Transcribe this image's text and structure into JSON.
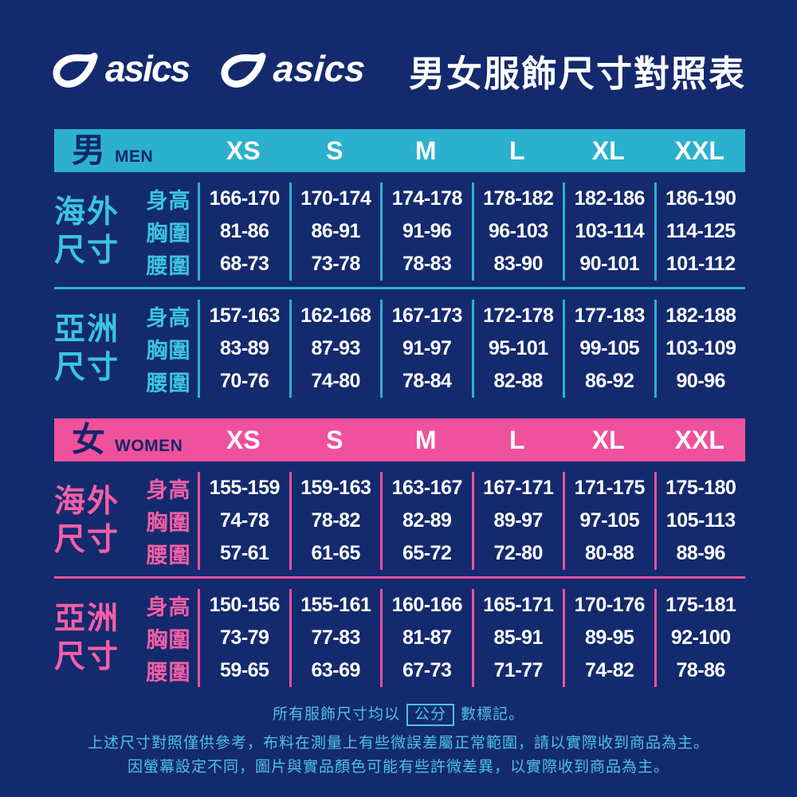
{
  "page": {
    "title": "男女服飾尺寸對照表"
  },
  "brand": {
    "wordmark": "asics",
    "wordmark_alt": "asics"
  },
  "colors": {
    "background": "#142a6e",
    "men_accent": "#2bb1ce",
    "men_label": "#3bc5de",
    "women_accent": "#f0519c",
    "women_label": "#f55fa7",
    "band_text": "#13266b",
    "value_text": "#ffffff",
    "footer_text": "#4ec2dd"
  },
  "size_headers": [
    "XS",
    "S",
    "M",
    "L",
    "XL",
    "XXL"
  ],
  "men": {
    "label": "男",
    "label_en": "MEN",
    "sections": [
      {
        "id": "overseas",
        "label_lines": [
          "海外",
          "尺寸"
        ],
        "rows": [
          {
            "label": "身高",
            "values": [
              "166-170",
              "170-174",
              "174-178",
              "178-182",
              "182-186",
              "186-190"
            ]
          },
          {
            "label": "胸圍",
            "values": [
              "81-86",
              "86-91",
              "91-96",
              "96-103",
              "103-114",
              "114-125"
            ]
          },
          {
            "label": "腰圍",
            "values": [
              "68-73",
              "73-78",
              "78-83",
              "83-90",
              "90-101",
              "101-112"
            ]
          }
        ]
      },
      {
        "id": "asia",
        "label_lines": [
          "亞洲",
          "尺寸"
        ],
        "rows": [
          {
            "label": "身高",
            "values": [
              "157-163",
              "162-168",
              "167-173",
              "172-178",
              "177-183",
              "182-188"
            ]
          },
          {
            "label": "胸圍",
            "values": [
              "83-89",
              "87-93",
              "91-97",
              "95-101",
              "99-105",
              "103-109"
            ]
          },
          {
            "label": "腰圍",
            "values": [
              "70-76",
              "74-80",
              "78-84",
              "82-88",
              "86-92",
              "90-96"
            ]
          }
        ]
      }
    ]
  },
  "women": {
    "label": "女",
    "label_en": "WOMEN",
    "sections": [
      {
        "id": "overseas",
        "label_lines": [
          "海外",
          "尺寸"
        ],
        "rows": [
          {
            "label": "身高",
            "values": [
              "155-159",
              "159-163",
              "163-167",
              "167-171",
              "171-175",
              "175-180"
            ]
          },
          {
            "label": "胸圍",
            "values": [
              "74-78",
              "78-82",
              "82-89",
              "89-97",
              "97-105",
              "105-113"
            ]
          },
          {
            "label": "腰圍",
            "values": [
              "57-61",
              "61-65",
              "65-72",
              "72-80",
              "80-88",
              "88-96"
            ]
          }
        ]
      },
      {
        "id": "asia",
        "label_lines": [
          "亞洲",
          "尺寸"
        ],
        "rows": [
          {
            "label": "身高",
            "values": [
              "150-156",
              "155-161",
              "160-166",
              "165-171",
              "170-176",
              "175-181"
            ]
          },
          {
            "label": "胸圍",
            "values": [
              "73-79",
              "77-83",
              "81-87",
              "85-91",
              "89-95",
              "92-100"
            ]
          },
          {
            "label": "腰圍",
            "values": [
              "59-65",
              "63-69",
              "67-73",
              "71-77",
              "74-82",
              "78-86"
            ]
          }
        ]
      }
    ]
  },
  "footer": {
    "line1_prefix": "所有服飾尺寸均以",
    "line1_boxed": "公分",
    "line1_suffix": "數標記。",
    "line2": "上述尺寸對照僅供參考，布料在測量上有些微誤差屬正常範圍，請以實際收到商品為主。",
    "line3": "因螢幕設定不同，圖片與實品顏色可能有些許微差異，以實際收到商品為主。"
  }
}
